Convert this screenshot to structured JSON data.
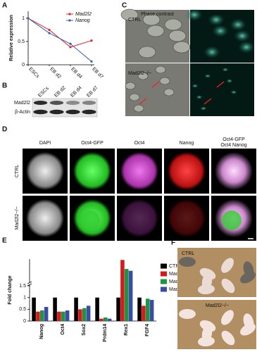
{
  "panels": [
    "A",
    "B",
    "C",
    "D",
    "E",
    "F"
  ],
  "chart_data": [
    {
      "type": "line",
      "ylabel": "Relative expression",
      "categories": [
        "ESCs",
        "EB d2",
        "EB d4",
        "EB d7"
      ],
      "series": [
        {
          "name": "Mad2l2",
          "color": "#e8242b",
          "values": [
            1,
            0.75,
            0.38,
            0.52
          ]
        },
        {
          "name": "Nanog",
          "color": "#3a5dae",
          "values": [
            1,
            0.68,
            0.45,
            0.07
          ]
        }
      ],
      "ylim": [
        0,
        1.15
      ],
      "yticks": [
        0,
        0.5,
        1
      ],
      "legend": "upper-right"
    },
    {
      "type": "bar",
      "ylabel": "Fold change",
      "categories": [
        "Nanog",
        "Oct4",
        "Sox2",
        "Prdm14",
        "Rex1",
        "FGF4"
      ],
      "series": [
        {
          "name": "CTRL",
          "color": "#000000",
          "values": [
            1,
            1,
            1,
            1,
            1,
            1
          ]
        },
        {
          "name": "Mad2l2−/− #1",
          "color": "#d7191c",
          "values": [
            0.4,
            0.4,
            0.5,
            0.1,
            13.5,
            0.65
          ]
        },
        {
          "name": "Mad2l2−/− #2",
          "color": "#1a9641",
          "values": [
            0.45,
            0.4,
            0.55,
            0.15,
            8.5,
            0.95
          ]
        },
        {
          "name": "Mad2l2−/− #3",
          "color": "#3b4ba8",
          "values": [
            0.6,
            0.45,
            0.65,
            0.1,
            7.5,
            0.9
          ]
        }
      ],
      "ylim": [
        0,
        14
      ],
      "yticks": [
        0,
        0.5,
        1,
        1.5
      ],
      "ybreak": 1.5,
      "legend": "right"
    }
  ],
  "blot": {
    "lanes": [
      "ESCs",
      "EB d2",
      "EB d4",
      "EB d7"
    ],
    "rows": [
      "Mad2l2",
      "β-Actin"
    ]
  },
  "phase": {
    "columns": [
      "Phase contrast",
      "Oct4-GFP"
    ],
    "rows": [
      "CTRL",
      "Mad2l2−/−"
    ]
  },
  "staining": {
    "columns": [
      "DAPI",
      "Oct4-GFP",
      "Oct4",
      "Nanog"
    ],
    "merge": [
      "Oct4-GFP",
      "Oct4 Nanog"
    ],
    "rows": [
      "CTRL",
      "Mad2l2−/−"
    ]
  },
  "mice": {
    "rows": [
      "CTRL",
      "Mad2l2−/−"
    ]
  }
}
